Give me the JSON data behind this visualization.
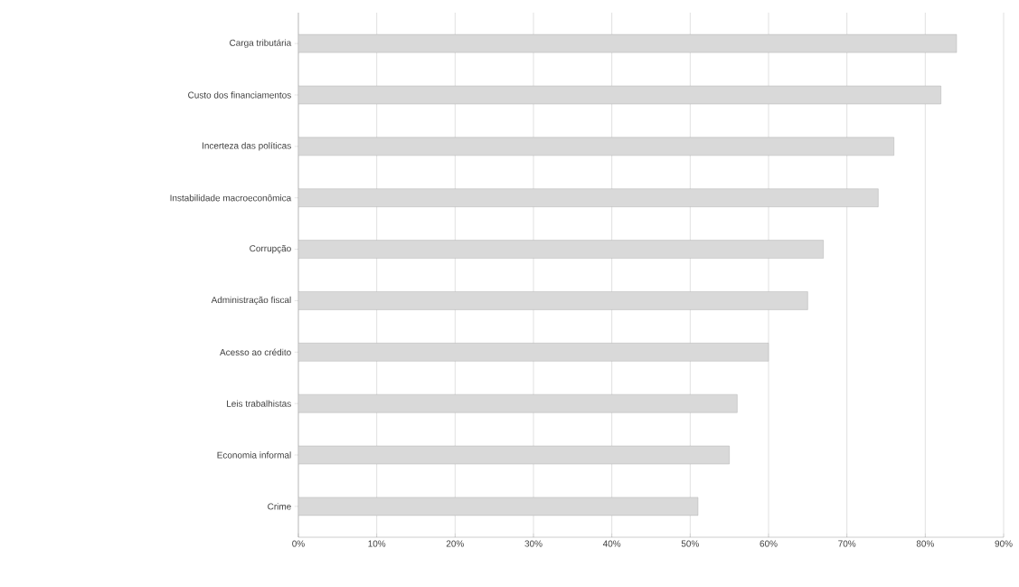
{
  "chart_data": {
    "type": "bar",
    "orientation": "horizontal",
    "categories": [
      "Carga tributária",
      "Custo dos financiamentos",
      "Incerteza das políticas",
      "Instabilidade macroeconômica",
      "Corrupção",
      "Administração fiscal",
      "Acesso ao crédito",
      "Leis trabalhistas",
      "Economia informal",
      "Crime"
    ],
    "values": [
      84,
      82,
      76,
      74,
      67,
      65,
      60,
      56,
      55,
      51
    ],
    "color": "#d9d9d9",
    "xlim": [
      0,
      90
    ],
    "xticks": [
      {
        "value": 0,
        "label": "0%"
      },
      {
        "value": 10,
        "label": "10%"
      },
      {
        "value": 20,
        "label": "20%"
      },
      {
        "value": 30,
        "label": "30%"
      },
      {
        "value": 40,
        "label": "40%"
      },
      {
        "value": 50,
        "label": "50%"
      },
      {
        "value": 60,
        "label": "60%"
      },
      {
        "value": 70,
        "label": "70%"
      },
      {
        "value": 80,
        "label": "80%"
      },
      {
        "value": 90,
        "label": "90%"
      }
    ],
    "grid": "x"
  }
}
